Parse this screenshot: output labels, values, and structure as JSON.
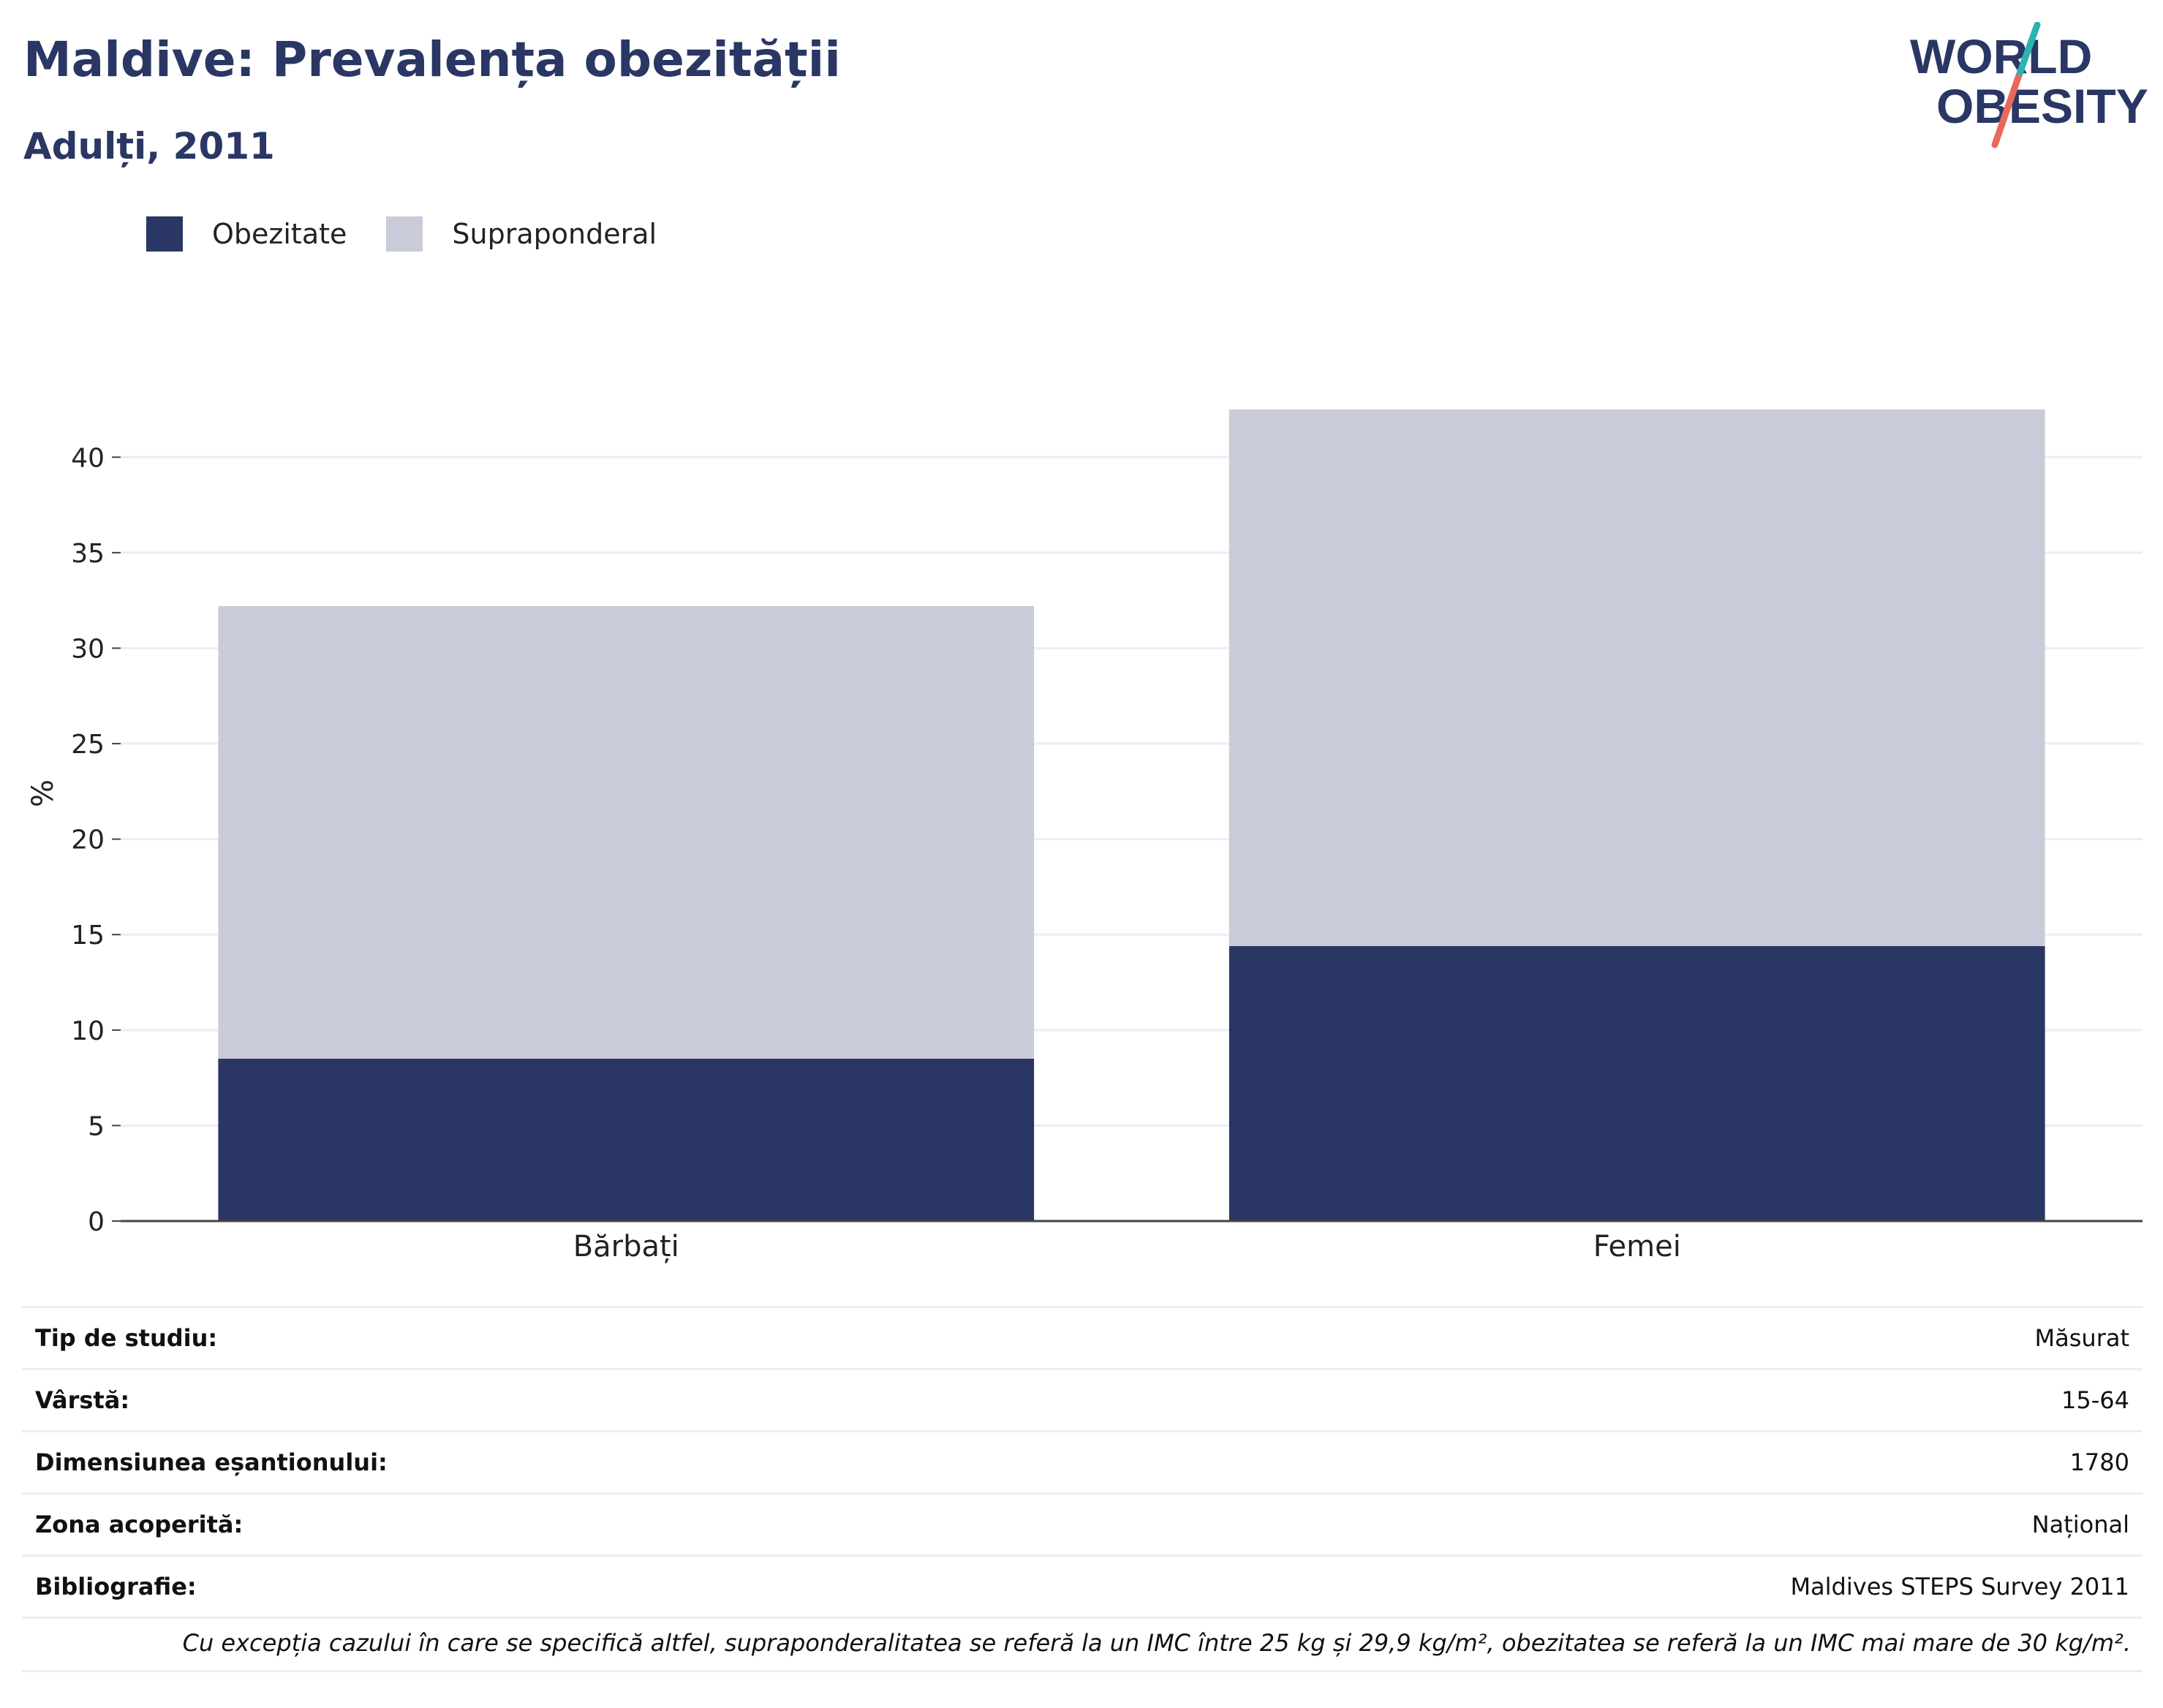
{
  "header": {
    "title": "Maldive: Prevalența obezității",
    "subtitle": "Adulți, 2011"
  },
  "logo": {
    "line1": "WORLD",
    "line2": "OBESITY",
    "colors": {
      "text": "#2a3663",
      "slash_top": "#2bb3b1",
      "slash_bottom": "#e8695c"
    }
  },
  "colors": {
    "obesity": "#2a3663",
    "overweight": "#c9ccd8",
    "grid": "#eceef4",
    "axis": "#444444"
  },
  "chart_data": {
    "type": "bar",
    "stacked": true,
    "categories": [
      "Bărbați",
      "Femei"
    ],
    "series": [
      {
        "name": "Obezitate",
        "values": [
          8.5,
          14.4
        ],
        "color": "#2a3663"
      },
      {
        "name": "Supraponderal",
        "values": [
          23.7,
          28.1
        ],
        "color": "#c9ccd8"
      }
    ],
    "ylabel": "%",
    "xlabel": "",
    "ylim": [
      0,
      42.5
    ],
    "yticks": [
      0,
      5,
      10,
      15,
      20,
      25,
      30,
      35,
      40
    ],
    "grid": true,
    "legend_position": "top-left"
  },
  "info": {
    "rows": [
      {
        "label": "Tip de studiu:",
        "value": "Măsurat"
      },
      {
        "label": "Vârstă:",
        "value": "15-64"
      },
      {
        "label": "Dimensiunea eșantionului:",
        "value": "1780"
      },
      {
        "label": "Zona acoperită:",
        "value": "Național"
      },
      {
        "label": "Bibliografie:",
        "value": "Maldives STEPS Survey 2011"
      }
    ],
    "note": "Cu excepția cazului în care se specifică altfel, supraponderalitatea se referă la un IMC între 25 kg și 29,9 kg/m², obezitatea se referă la un IMC mai mare de 30 kg/m²."
  }
}
